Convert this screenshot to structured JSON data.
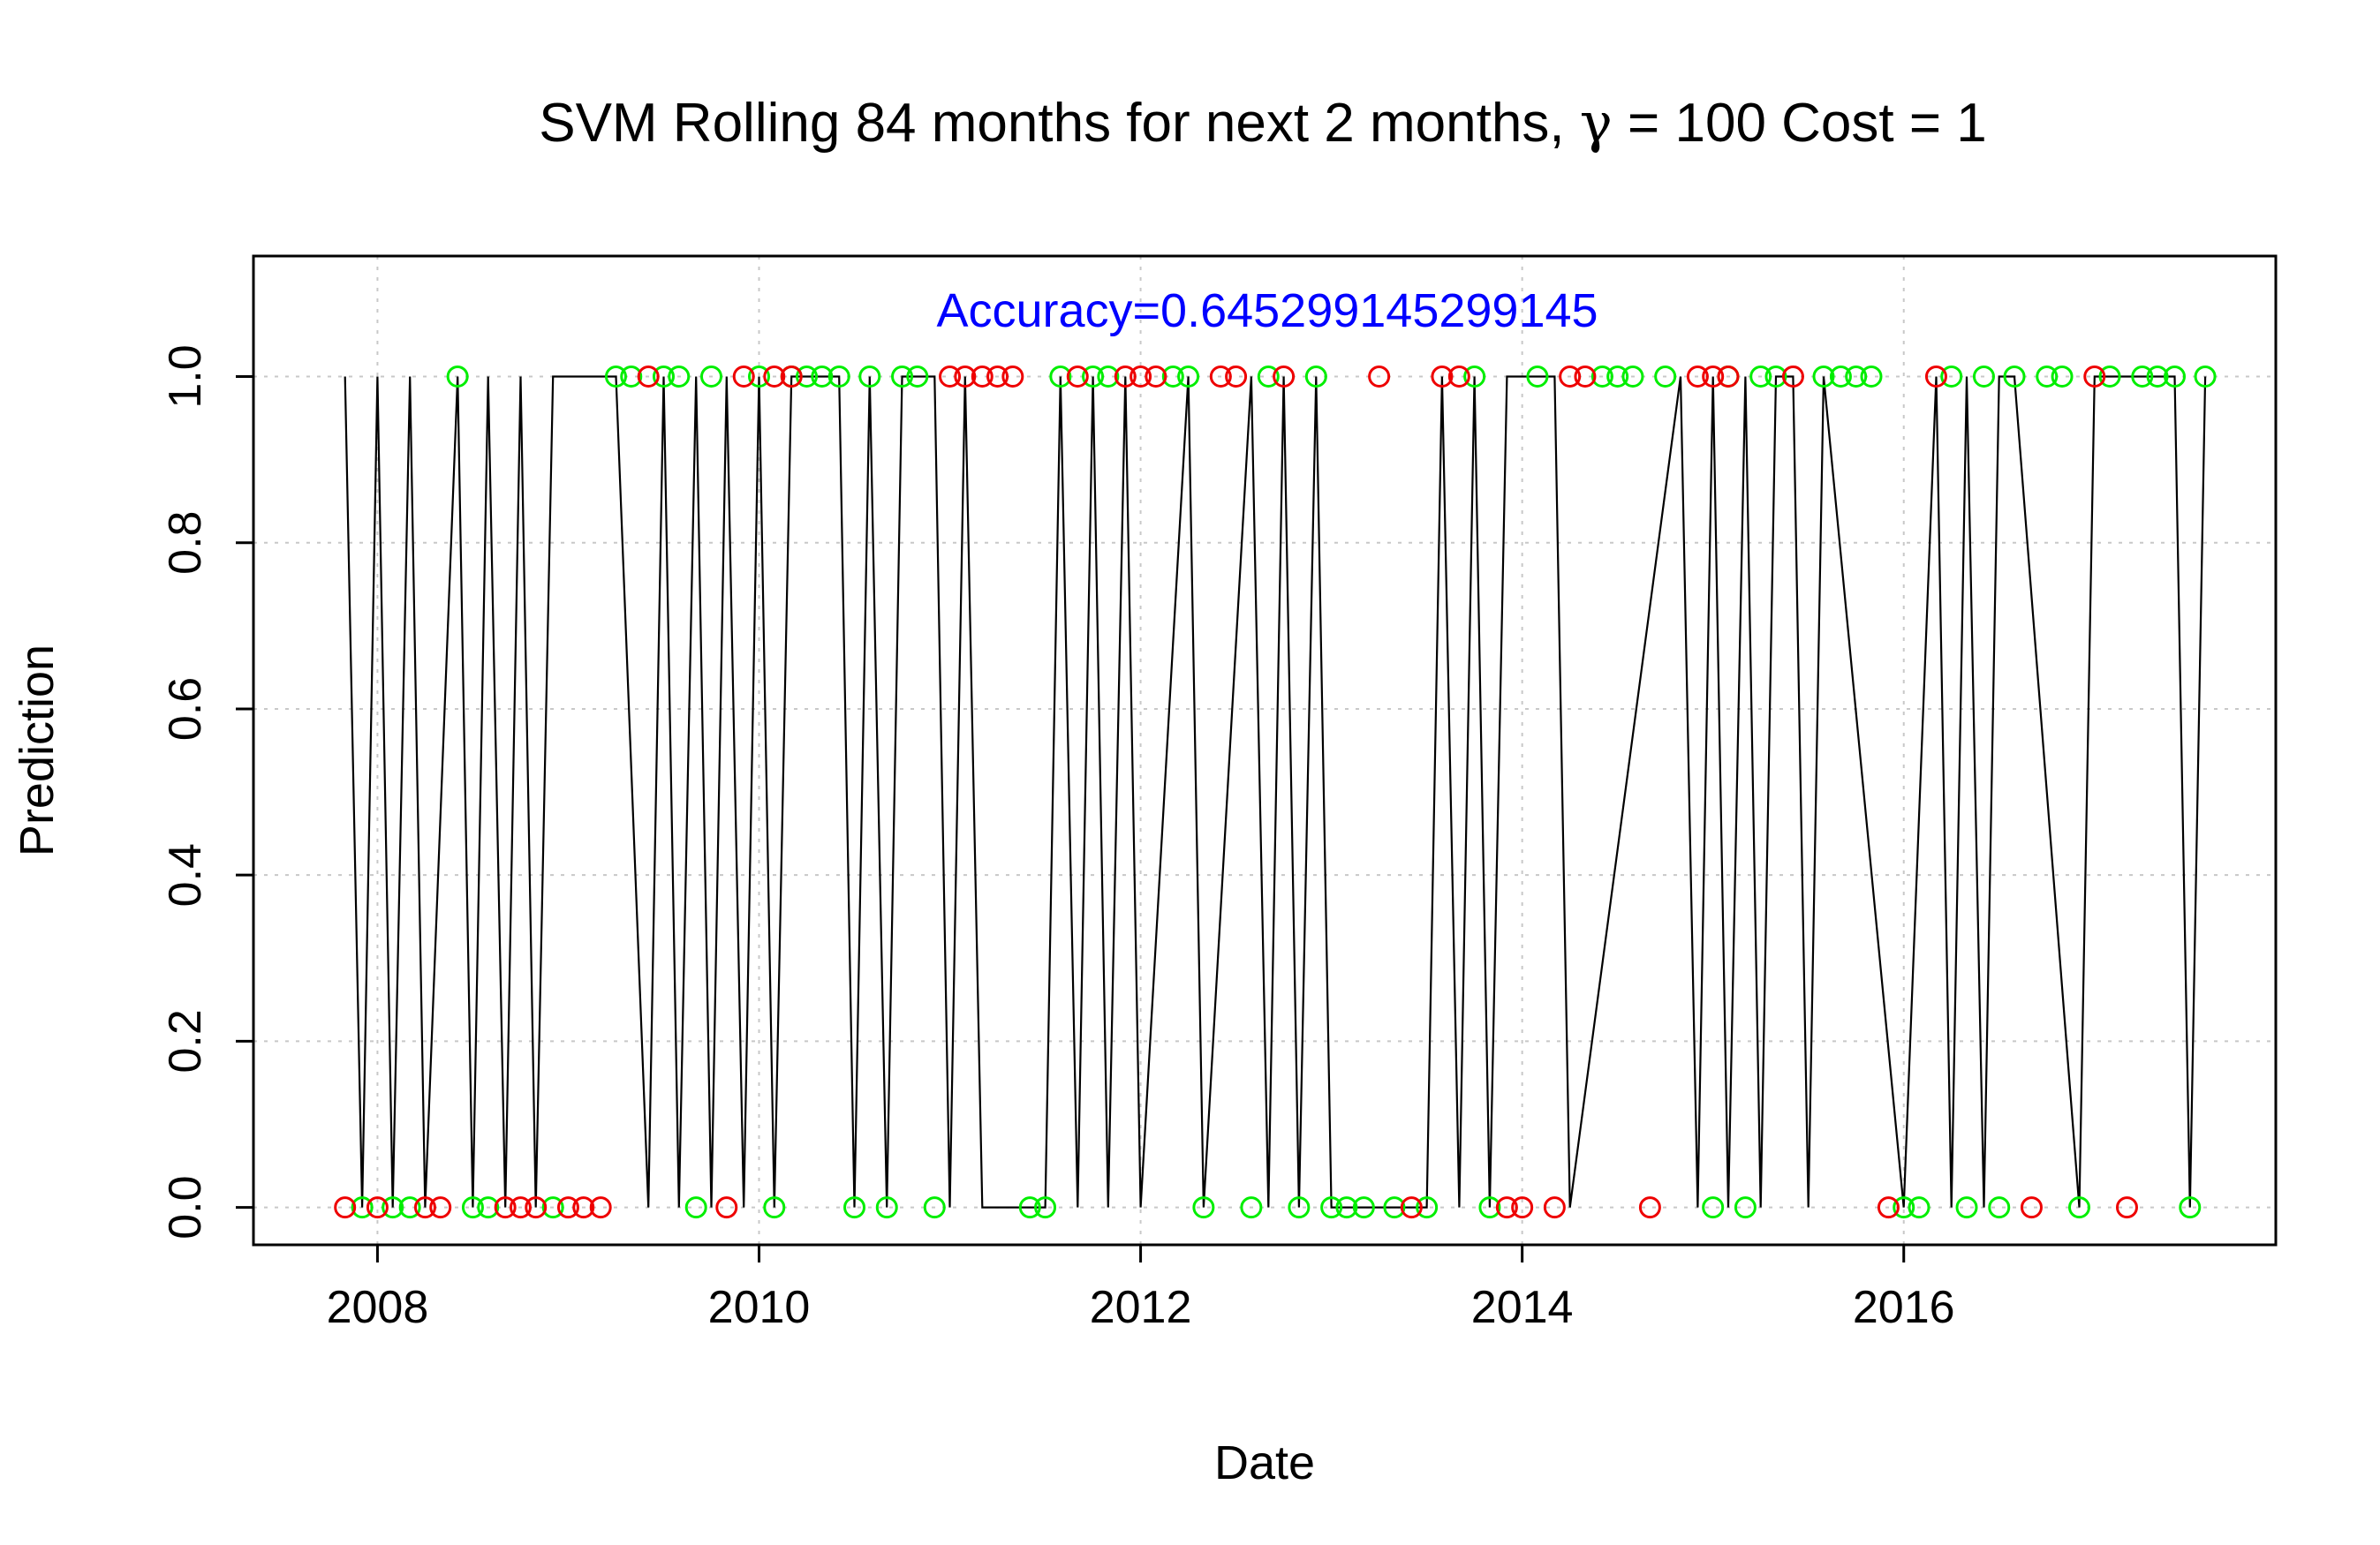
{
  "chart_data": {
    "type": "scatter",
    "title_prefix": "SVM Rolling 84 months for next 2 months, ",
    "title_symbol": "γ",
    "title_suffix": " = 100 Cost = 1",
    "xlabel": "Date",
    "ylabel": "Prediction",
    "annotation": "Accuracy=0.645299145299145",
    "annotation_color": "#0000ff",
    "correct_color": "#00ee00",
    "incorrect_color": "#ee0000",
    "xlim": [
      2007.35,
      2017.95
    ],
    "ylim": [
      -0.045,
      1.145
    ],
    "x_ticks": [
      2008,
      2010,
      2012,
      2014,
      2016
    ],
    "x_tick_labels": [
      "2008",
      "2010",
      "2012",
      "2014",
      "2016"
    ],
    "y_ticks": [
      0.0,
      0.2,
      0.4,
      0.6,
      0.8,
      1.0
    ],
    "y_tick_labels": [
      "0.0",
      "0.2",
      "0.4",
      "0.6",
      "0.8",
      "1.0"
    ],
    "grid": true,
    "line": {
      "description_free": true,
      "x": [
        2007.83,
        2007.92,
        2008.0,
        2008.08,
        2008.17,
        2008.25,
        2008.42,
        2008.5,
        2008.58,
        2008.67,
        2008.75,
        2008.83,
        2008.92,
        2009.0,
        2009.25,
        2009.42,
        2009.5,
        2009.58,
        2009.67,
        2009.75,
        2009.83,
        2009.92,
        2010.0,
        2010.08,
        2010.17,
        2010.42,
        2010.5,
        2010.58,
        2010.67,
        2010.75,
        2010.92,
        2011.0,
        2011.08,
        2011.17,
        2011.5,
        2011.58,
        2011.67,
        2011.75,
        2011.83,
        2011.92,
        2012.0,
        2012.25,
        2012.33,
        2012.58,
        2012.67,
        2012.75,
        2012.83,
        2012.92,
        2013.0,
        2013.5,
        2013.58,
        2013.67,
        2013.75,
        2013.83,
        2013.92,
        2014.08,
        2014.17,
        2014.25,
        2014.83,
        2014.92,
        2015.0,
        2015.08,
        2015.17,
        2015.25,
        2015.33,
        2015.42,
        2015.5,
        2015.58,
        2016.0,
        2016.17,
        2016.25,
        2016.33,
        2016.42,
        2016.5,
        2016.58,
        2016.92,
        2017.0,
        2017.33,
        2017.42,
        2017.5,
        2017.58
      ],
      "y": [
        1,
        0,
        1,
        0,
        1,
        0,
        1,
        0,
        1,
        0,
        1,
        0,
        1,
        1,
        1,
        0,
        1,
        0,
        1,
        0,
        1,
        0,
        1,
        0,
        1,
        1,
        0,
        1,
        0,
        1,
        1,
        0,
        1,
        0,
        0,
        1,
        0,
        1,
        0,
        1,
        0,
        1,
        0,
        1,
        0,
        1,
        0,
        1,
        0,
        0,
        1,
        0,
        1,
        0,
        1,
        1,
        1,
        0,
        1,
        0,
        1,
        0,
        1,
        0,
        1,
        1,
        0,
        1,
        0,
        1,
        0,
        1,
        0,
        1,
        1,
        0,
        1,
        1,
        1,
        0,
        1
      ]
    },
    "series": [
      {
        "points_correct": {
          "x": [
            2007.92,
            2008.08,
            2008.17,
            2008.42,
            2008.5,
            2008.58,
            2008.92,
            2009.25,
            2009.33,
            2009.5,
            2009.58,
            2009.67,
            2009.75,
            2010.0,
            2010.08,
            2010.17,
            2010.25,
            2010.33,
            2010.42,
            2010.5,
            2010.58,
            2010.67,
            2010.75,
            2010.83,
            2010.92,
            2011.42,
            2011.5,
            2011.58,
            2011.75,
            2011.83,
            2012.17,
            2012.25,
            2012.33,
            2012.58,
            2012.67,
            2012.83,
            2012.92,
            2013.0,
            2013.08,
            2013.17,
            2013.33,
            2013.5,
            2013.75,
            2013.83,
            2014.08,
            2014.42,
            2014.5,
            2014.58,
            2014.75,
            2015.0,
            2015.08,
            2015.17,
            2015.25,
            2015.33,
            2015.58,
            2015.67,
            2015.75,
            2015.83,
            2016.0,
            2016.08,
            2016.25,
            2016.33,
            2016.42,
            2016.5,
            2016.58,
            2016.75,
            2016.83,
            2016.92,
            2017.08,
            2017.25,
            2017.33,
            2017.42,
            2017.5,
            2017.58
          ],
          "y": [
            0,
            0,
            0,
            1,
            0,
            0,
            0,
            1,
            1,
            1,
            1,
            0,
            1,
            1,
            0,
            1,
            1,
            1,
            1,
            0,
            1,
            0,
            1,
            1,
            0,
            0,
            0,
            1,
            1,
            1,
            1,
            1,
            0,
            0,
            1,
            0,
            1,
            0,
            0,
            0,
            0,
            0,
            1,
            0,
            1,
            1,
            1,
            1,
            1,
            0,
            1,
            0,
            1,
            1,
            1,
            1,
            1,
            1,
            0,
            0,
            1,
            0,
            1,
            0,
            1,
            1,
            1,
            0,
            1,
            1,
            1,
            1,
            0,
            1
          ]
        },
        "points_incorrect": {
          "x": [
            2007.83,
            2008.0,
            2008.25,
            2008.33,
            2008.67,
            2008.75,
            2008.83,
            2009.0,
            2009.08,
            2009.17,
            2009.42,
            2009.83,
            2009.92,
            2010.08,
            2010.17,
            2011.0,
            2011.08,
            2011.17,
            2011.25,
            2011.33,
            2011.67,
            2011.92,
            2012.0,
            2012.08,
            2012.42,
            2012.5,
            2012.75,
            2013.25,
            2013.42,
            2013.58,
            2013.67,
            2013.92,
            2014.0,
            2014.17,
            2014.25,
            2014.33,
            2014.67,
            2014.92,
            2015.0,
            2015.08,
            2015.42,
            2015.92,
            2016.17,
            2016.67,
            2017.0,
            2017.17
          ],
          "y": [
            0,
            0,
            0,
            0,
            0,
            0,
            0,
            0,
            0,
            0,
            1,
            0,
            1,
            1,
            1,
            1,
            1,
            1,
            1,
            1,
            1,
            1,
            1,
            1,
            1,
            1,
            1,
            1,
            0,
            1,
            1,
            0,
            0,
            0,
            1,
            1,
            0,
            1,
            1,
            1,
            1,
            0,
            1,
            0,
            1,
            0
          ]
        }
      }
    ]
  }
}
